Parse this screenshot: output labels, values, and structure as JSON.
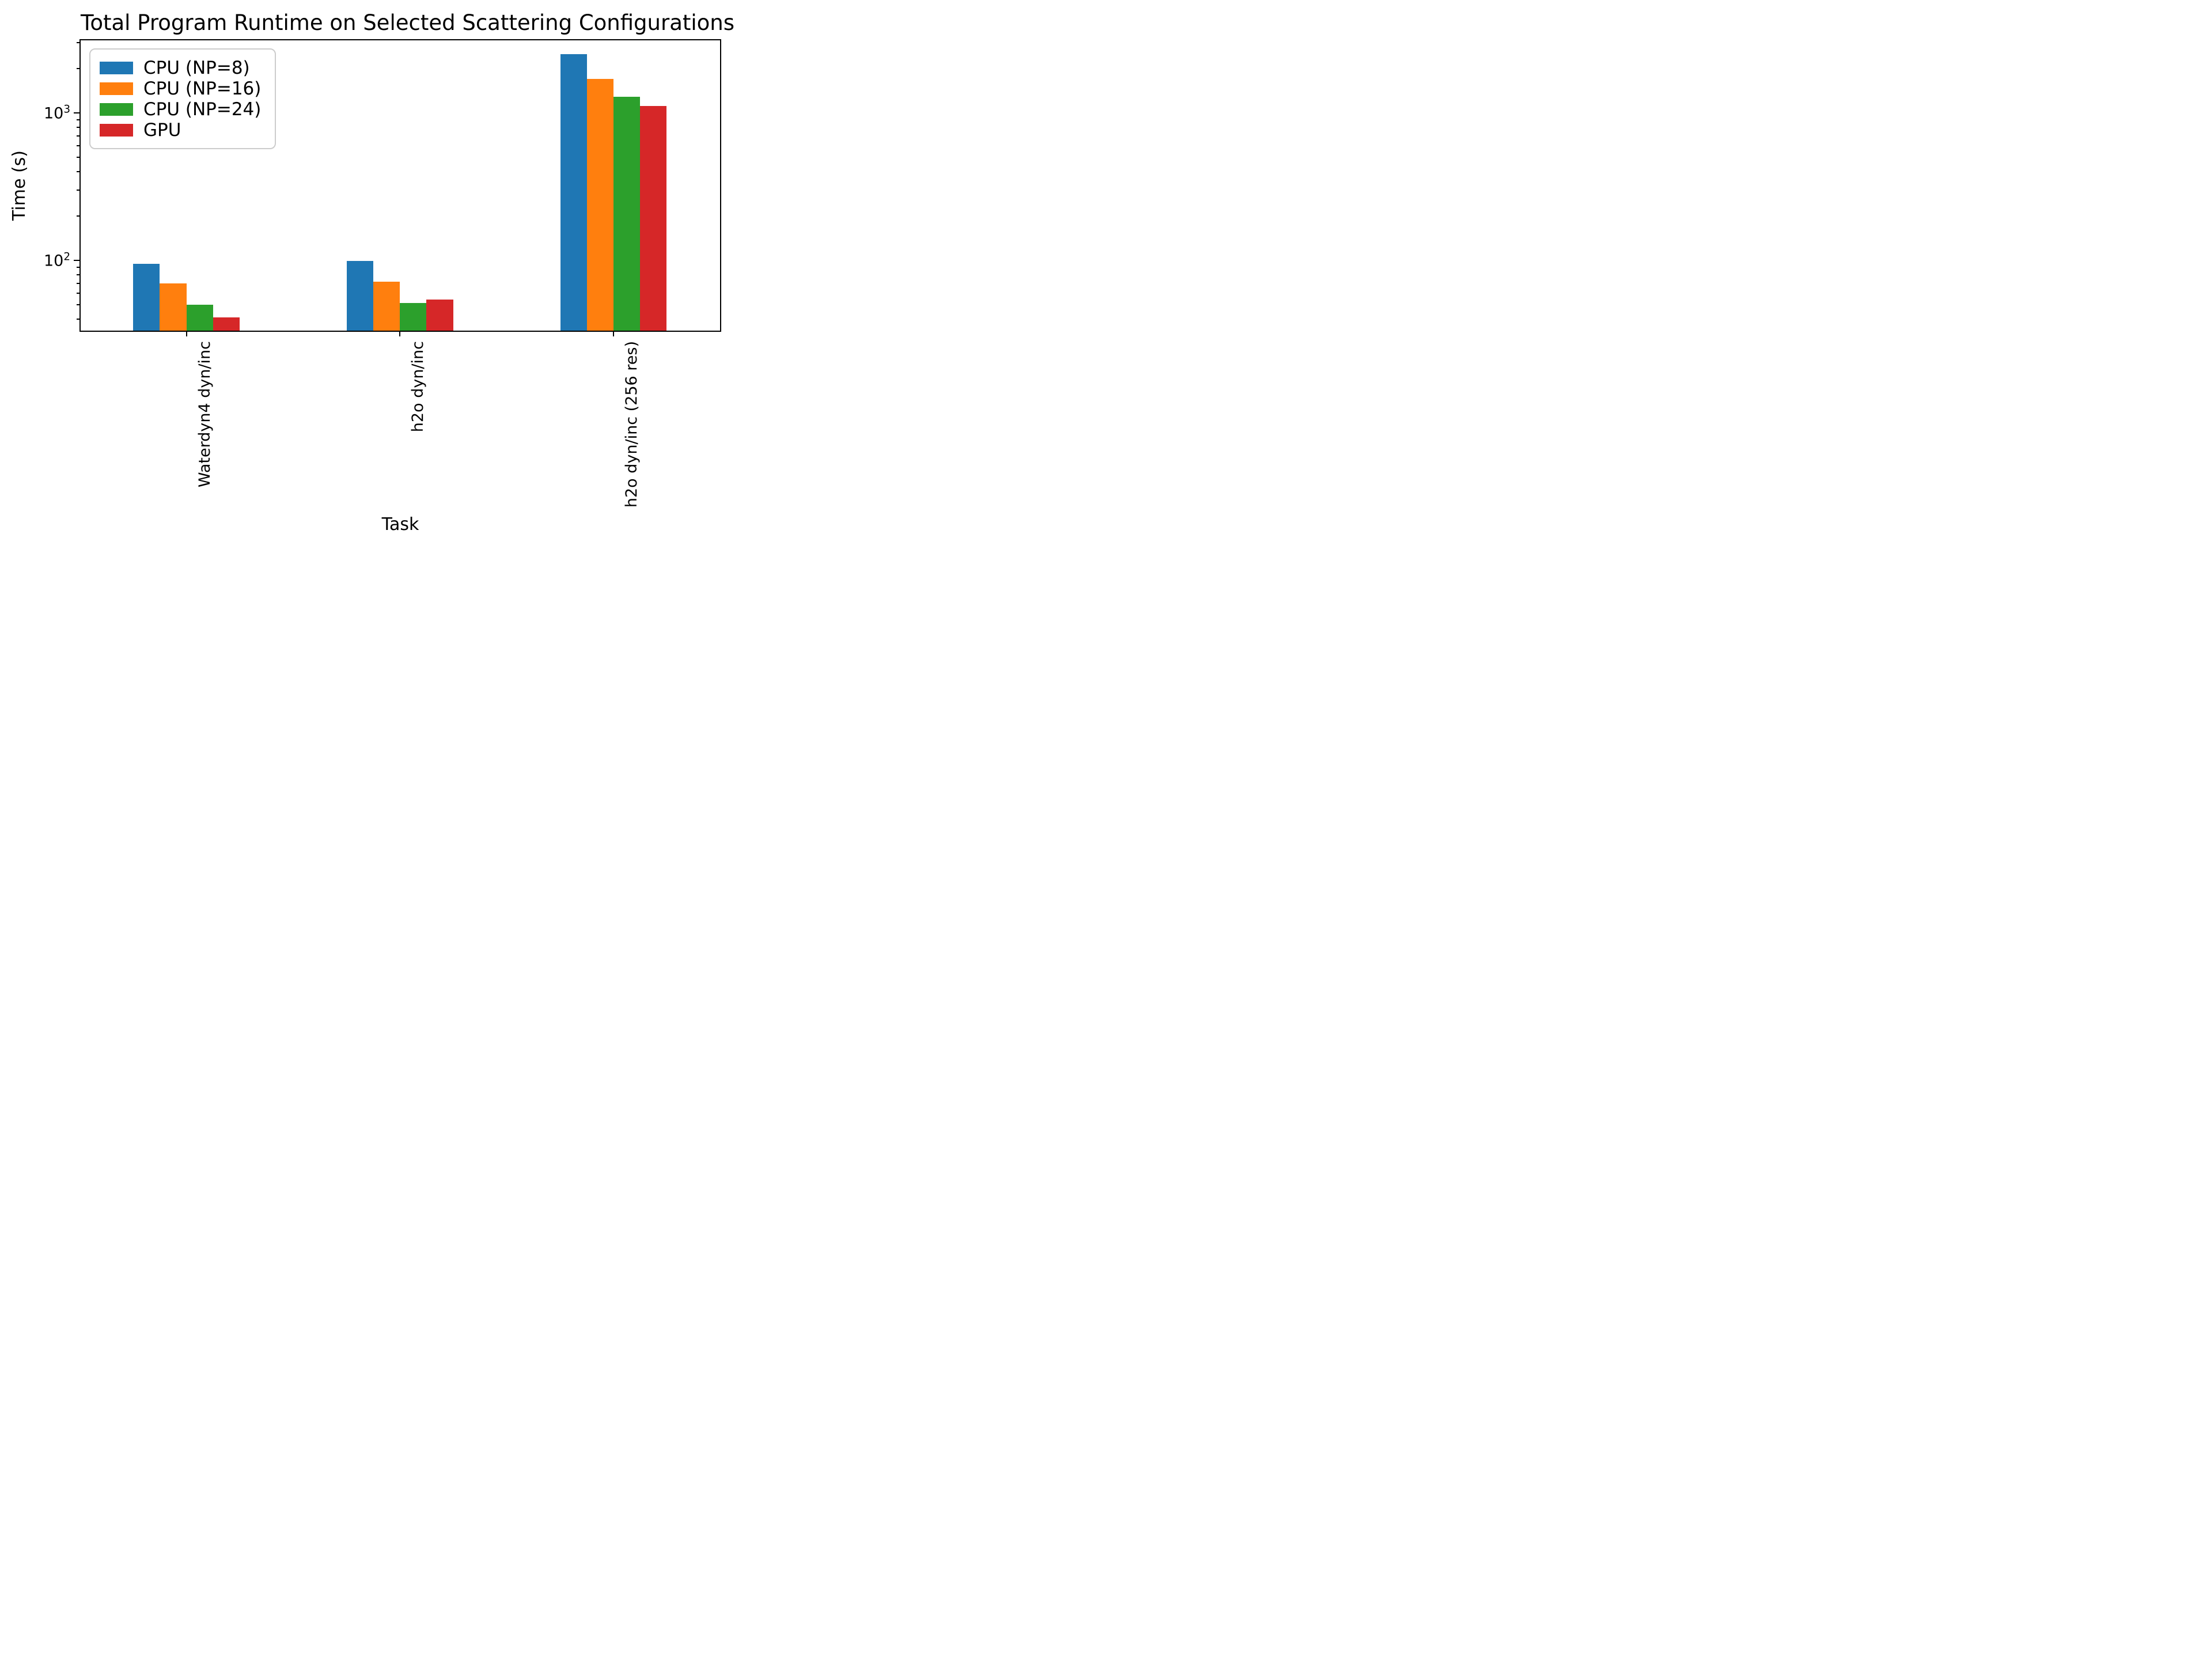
{
  "chart_data": {
    "type": "bar",
    "title": "Total Program Runtime on Selected Scattering Configurations",
    "xlabel": "Task",
    "ylabel": "Time (s)",
    "yscale": "log",
    "ylim": [
      33.4,
      3120
    ],
    "grid": false,
    "legend_position": "upper-left",
    "categories": [
      "Waterdyn4 dyn/inc",
      "h2o dyn/inc",
      "h2o dyn/inc (256 res)"
    ],
    "series": [
      {
        "name": "CPU (NP=8)",
        "color": "#1f77b4",
        "values": [
          95,
          99,
          2520
        ]
      },
      {
        "name": "CPU (NP=16)",
        "color": "#ff7f0e",
        "values": [
          70,
          72,
          1700
        ]
      },
      {
        "name": "CPU (NP=24)",
        "color": "#2ca02c",
        "values": [
          50,
          51.5,
          1290
        ]
      },
      {
        "name": "GPU",
        "color": "#d62728",
        "values": [
          41,
          54.5,
          1120
        ]
      }
    ],
    "y_major_ticks": [
      {
        "value": 100,
        "base": "10",
        "exp": "2"
      },
      {
        "value": 1000,
        "base": "10",
        "exp": "3"
      }
    ],
    "y_minor_ticks": [
      40,
      50,
      60,
      70,
      80,
      90,
      200,
      300,
      400,
      500,
      600,
      700,
      800,
      900,
      2000,
      3000
    ],
    "axis_color": "#000000",
    "legend_border_color": "#cccccc"
  }
}
